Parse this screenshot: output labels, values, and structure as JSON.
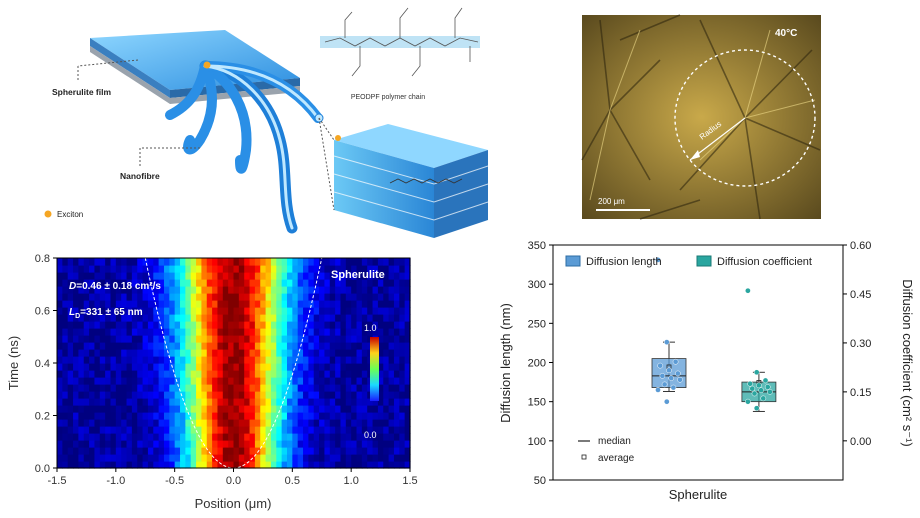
{
  "schematic": {
    "chain_label": "PEODPF polymer chain",
    "film_label": "Spherulite film",
    "fibre_label": "Nanofibre",
    "exciton_label": "Exciton"
  },
  "micrograph": {
    "temperature": "40°C",
    "radius_label": "Radius",
    "scale_label": "200 μm"
  },
  "heatmap_annotations": {
    "sample": "Spherulite",
    "d_label": "D",
    "d_value": "=0.46 ± 0.18 cm²/s",
    "l_label": "L",
    "l_sub": "D",
    "l_value": "=331 ± 65 nm"
  },
  "chart_data": [
    {
      "type": "heatmap",
      "title": "",
      "xlabel": "Position (μm)",
      "ylabel": "Time (ns)",
      "xlim": [
        -1.5,
        1.5
      ],
      "ylim": [
        0.0,
        0.8
      ],
      "x_ticks": [
        "-1.5",
        "-1.0",
        "-0.5",
        "0.0",
        "0.5",
        "1.0",
        "1.5"
      ],
      "y_ticks": [
        "0.0",
        "0.2",
        "0.4",
        "0.6",
        "0.8"
      ],
      "colorbar": {
        "min": 0.0,
        "max": 1.0,
        "labels": [
          "1.0",
          "0.0"
        ]
      },
      "profile_width_um": 0.27,
      "spread_curve": {
        "x_min": -0.75,
        "x_max": 0.75,
        "t_at_edge": 0.8
      }
    },
    {
      "type": "box",
      "title": "",
      "category": "Spherulite",
      "ylabel_left": "Diffusion length (nm)",
      "ylabel_right": "Diffusion coefficient (cm² s⁻¹)",
      "ylim_left": [
        50,
        350
      ],
      "ylim_right": [
        -0.12,
        0.6
      ],
      "y_ticks_left": [
        "50",
        "100",
        "150",
        "200",
        "250",
        "300",
        "350"
      ],
      "y_ticks_right": [
        "0.00",
        "0.15",
        "0.30",
        "0.45",
        "0.60"
      ],
      "legend": [
        "Diffusion length",
        "Diffusion coefficient"
      ],
      "legend_inset": [
        "median",
        "average"
      ],
      "series": [
        {
          "name": "Diffusion length",
          "color": "#5b9bd5",
          "q1": 168,
          "median": 183,
          "q3": 205,
          "whisker_low": 163,
          "whisker_high": 226,
          "points": [
            331,
            226,
            201,
            196,
            190,
            186,
            183,
            180,
            178,
            172,
            168,
            165,
            150
          ]
        },
        {
          "name": "Diffusion coefficient",
          "color": "#2aa6a0",
          "q1": 0.12,
          "median": 0.15,
          "q3": 0.18,
          "whisker_low": 0.09,
          "whisker_high": 0.21,
          "points": [
            0.46,
            0.21,
            0.185,
            0.175,
            0.17,
            0.165,
            0.16,
            0.155,
            0.15,
            0.145,
            0.13,
            0.12,
            0.1
          ]
        }
      ]
    }
  ]
}
